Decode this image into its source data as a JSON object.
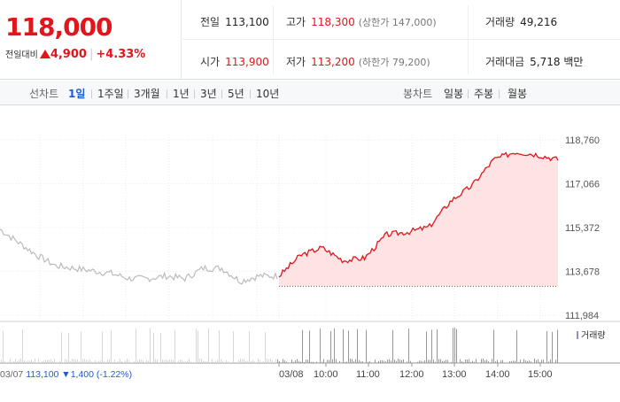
{
  "quote": {
    "price": "118,000",
    "change_label": "전일대비",
    "change_amount": "4,900",
    "change_pct": "+4.33%"
  },
  "info": {
    "prev_close_label": "전일",
    "prev_close": "113,100",
    "high_label": "고가",
    "high": "118,300",
    "upper_limit": "(상한가 147,000)",
    "volume_label": "거래량",
    "volume": "49,216",
    "open_label": "시가",
    "open": "113,900",
    "low_label": "저가",
    "low": "113,200",
    "lower_limit": "(하한가 79,200)",
    "trade_value_label": "거래대금",
    "trade_value": "5,718 백만"
  },
  "tabs": {
    "line_label": "선차트",
    "line_periods": [
      "1일",
      "1주일",
      "3개월",
      "1년",
      "3년",
      "5년",
      "10년"
    ],
    "active_period": "1일",
    "candle_label": "봉차트",
    "candle_periods": [
      "일봉",
      "주봉",
      "월봉"
    ]
  },
  "chart_data": {
    "type": "line",
    "series": [
      {
        "x": [
          "03/07",
          "03/07",
          "03/07",
          "03/07",
          "03/07",
          "03/07",
          "03/07",
          "03/07",
          "03/07",
          "03/07",
          "03/07",
          "03/07",
          "03/07",
          "03/07",
          "03/07",
          "03/07"
        ],
        "values": [
          115300,
          114800,
          114300,
          113900,
          113800,
          113700,
          113600,
          113400,
          113400,
          113500,
          113400,
          113800,
          113800,
          113300,
          113500,
          113500
        ],
        "color": "#bbbbbb"
      },
      {
        "x": [
          "09:00",
          "09:30",
          "10:00",
          "10:30",
          "11:00",
          "11:30",
          "12:00",
          "12:30",
          "13:00",
          "13:30",
          "14:00",
          "14:30",
          "15:00",
          "15:20"
        ],
        "values": [
          113500,
          114300,
          114600,
          114100,
          114200,
          115100,
          115200,
          115400,
          116400,
          117000,
          118000,
          118300,
          118200,
          118000
        ],
        "color": "#e0161c"
      }
    ],
    "baseline": 113100,
    "y_ticks": [
      "118,760",
      "117,066",
      "115,372",
      "113,678",
      "111,984"
    ],
    "ylim": [
      111984,
      118760
    ],
    "x_ticks": [
      "03/08",
      "10:00",
      "11:00",
      "12:00",
      "13:00",
      "14:00",
      "15:00"
    ],
    "volume_label": "거래량",
    "prev_day_label": "03/07",
    "prev_day_close": "113,100",
    "prev_day_change": "▼1,400 (-1.22%)"
  },
  "colors": {
    "up": "#e0161c",
    "down": "#1f5ad6",
    "prev_line": "#bbbbbb",
    "volume": "#9b8cc8"
  }
}
